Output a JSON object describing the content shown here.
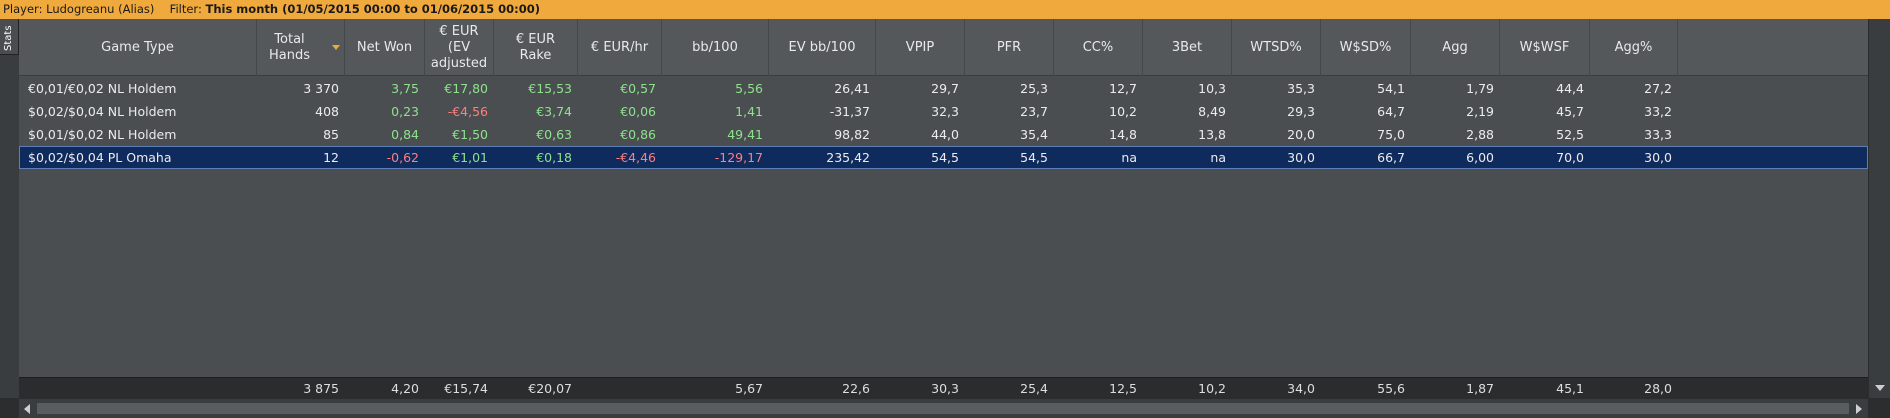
{
  "filter_bar": {
    "player_label": "Player:",
    "player_name": "Ludogreanu (Alias)",
    "filter_label": "Filter:",
    "filter_value": "This month (01/05/2015 00:00 to 01/06/2015 00:00)"
  },
  "stats_tab": {
    "label": "Stats"
  },
  "columns": [
    {
      "key": "game_type",
      "label": "Game Type"
    },
    {
      "key": "total_hands",
      "label": "Total Hands",
      "sorted": true
    },
    {
      "key": "net_won",
      "label": "Net Won"
    },
    {
      "key": "ev_adjusted",
      "label": "€ EUR (EV adjusted"
    },
    {
      "key": "rake",
      "label": "€ EUR Rake"
    },
    {
      "key": "eur_hr",
      "label": "€ EUR/hr"
    },
    {
      "key": "bb100",
      "label": "bb/100"
    },
    {
      "key": "ev_bb100",
      "label": "EV bb/100"
    },
    {
      "key": "vpip",
      "label": "VPIP"
    },
    {
      "key": "pfr",
      "label": "PFR"
    },
    {
      "key": "cc",
      "label": "CC%"
    },
    {
      "key": "threebet",
      "label": "3Bet"
    },
    {
      "key": "wtsd",
      "label": "WTSD%"
    },
    {
      "key": "wsd",
      "label": "W$SD%"
    },
    {
      "key": "agg",
      "label": "Agg"
    },
    {
      "key": "wwsf",
      "label": "W$WSF"
    },
    {
      "key": "agg_pct",
      "label": "Agg%"
    }
  ],
  "rows": [
    {
      "game_type": "€0,01/€0,02 NL Holdem",
      "total_hands": "3 370",
      "net_won": "3,75",
      "ev_adjusted": "€17,80",
      "rake": "€15,53",
      "eur_hr": "€0,57",
      "bb100": "5,56",
      "ev_bb100": "26,41",
      "vpip": "29,7",
      "pfr": "25,3",
      "cc": "12,7",
      "threebet": "10,3",
      "wtsd": "35,3",
      "wsd": "54,1",
      "agg": "1,79",
      "wwsf": "44,4",
      "agg_pct": "27,2",
      "selected": false
    },
    {
      "game_type": "$0,02/$0,04 NL Holdem",
      "total_hands": "408",
      "net_won": "0,23",
      "ev_adjusted": "-€4,56",
      "rake": "€3,74",
      "eur_hr": "€0,06",
      "bb100": "1,41",
      "ev_bb100": "-31,37",
      "vpip": "32,3",
      "pfr": "23,7",
      "cc": "10,2",
      "threebet": "8,49",
      "wtsd": "29,3",
      "wsd": "64,7",
      "agg": "2,19",
      "wwsf": "45,7",
      "agg_pct": "33,2",
      "selected": false
    },
    {
      "game_type": "$0,01/$0,02 NL Holdem",
      "total_hands": "85",
      "net_won": "0,84",
      "ev_adjusted": "€1,50",
      "rake": "€0,63",
      "eur_hr": "€0,86",
      "bb100": "49,41",
      "ev_bb100": "98,82",
      "vpip": "44,0",
      "pfr": "35,4",
      "cc": "14,8",
      "threebet": "13,8",
      "wtsd": "20,0",
      "wsd": "75,0",
      "agg": "2,88",
      "wwsf": "52,5",
      "agg_pct": "33,3",
      "selected": false
    },
    {
      "game_type": "$0,02/$0,04 PL Omaha",
      "total_hands": "12",
      "net_won": "-0,62",
      "ev_adjusted": "€1,01",
      "rake": "€0,18",
      "eur_hr": "-€4,46",
      "bb100": "-129,17",
      "ev_bb100": "235,42",
      "vpip": "54,5",
      "pfr": "54,5",
      "cc": "na",
      "threebet": "na",
      "wtsd": "30,0",
      "wsd": "66,7",
      "agg": "6,00",
      "wwsf": "70,0",
      "agg_pct": "30,0",
      "selected": true
    }
  ],
  "totals": {
    "game_type": "",
    "total_hands": "3 875",
    "net_won": "4,20",
    "ev_adjusted": "€15,74",
    "rake": "€20,07",
    "eur_hr": "",
    "bb100": "5,67",
    "ev_bb100": "22,6",
    "vpip": "30,3",
    "pfr": "25,4",
    "cc": "12,5",
    "threebet": "10,2",
    "wtsd": "34,0",
    "wsd": "55,6",
    "agg": "1,87",
    "wwsf": "45,1",
    "agg_pct": "28,0"
  },
  "colors": {
    "positive": "#8ee28e",
    "negative": "#ff7f7f",
    "filter_bar": "#f0a93c",
    "selected_row": "#0f2a5c"
  }
}
